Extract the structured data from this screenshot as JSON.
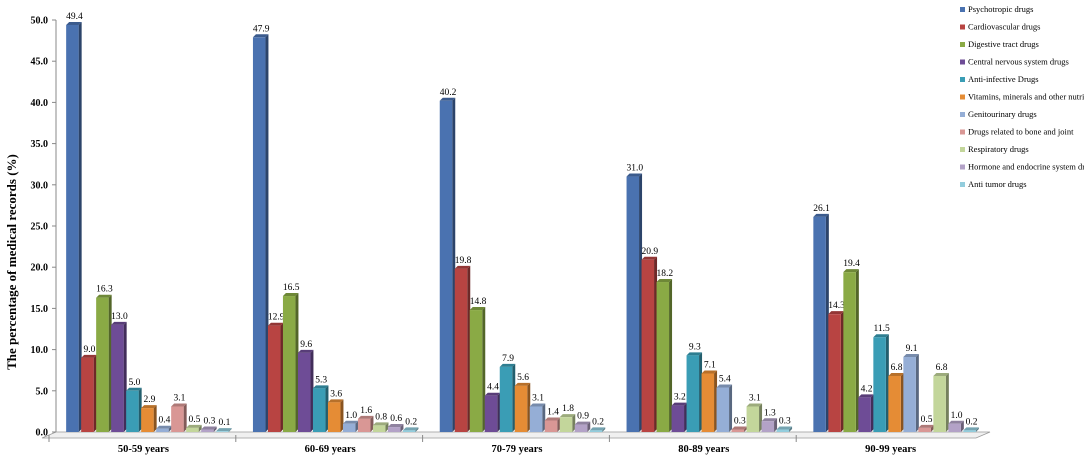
{
  "chart_data": {
    "type": "bar",
    "title": "",
    "xlabel": "",
    "ylabel": "The percentage of medical records (%)",
    "ylim": [
      0,
      50
    ],
    "yticks": [
      "0.0",
      "5.0",
      "10.0",
      "15.0",
      "20.0",
      "25.0",
      "30.0",
      "35.0",
      "40.0",
      "45.0",
      "50.0"
    ],
    "grid": false,
    "legend_position": "right",
    "categories": [
      "50-59 years",
      "60-69 years",
      "70-79 years",
      "80-89 years",
      "90-99 years"
    ],
    "series": [
      {
        "name": "Psychotropic drugs",
        "color": "#4a72b0",
        "values": [
          49.4,
          47.9,
          40.2,
          31.0,
          26.1
        ],
        "labels": [
          "49.4",
          "47.9",
          "40.2",
          "31.0",
          "26.1"
        ]
      },
      {
        "name": "Cardiovascular drugs",
        "color": "#b84442",
        "values": [
          9.0,
          12.9,
          19.8,
          20.9,
          14.3
        ],
        "labels": [
          "9.0",
          "12.9",
          "19.8",
          "20.9",
          "14.3"
        ]
      },
      {
        "name": "Digestive tract drugs",
        "color": "#8aaa45",
        "values": [
          16.3,
          16.5,
          14.8,
          18.2,
          19.4
        ],
        "labels": [
          "16.3",
          "16.5",
          "14.8",
          "18.2",
          "19.4"
        ]
      },
      {
        "name": "Central nervous system drugs",
        "color": "#6e4c96",
        "values": [
          13.0,
          9.6,
          4.4,
          3.2,
          4.2
        ],
        "labels": [
          "13.0",
          "9.6",
          "4.4",
          "3.2",
          "4.2"
        ]
      },
      {
        "name": "Anti-infective Drugs",
        "color": "#3a9db5",
        "values": [
          5.0,
          5.3,
          7.9,
          9.3,
          11.5
        ],
        "labels": [
          "5.0",
          "5.3",
          "7.9",
          "9.3",
          "11.5"
        ]
      },
      {
        "name": "Vitamins, minerals and other nutrients",
        "color": "#e58c35",
        "values": [
          2.9,
          3.6,
          5.6,
          7.1,
          6.8
        ],
        "labels": [
          "2.9",
          "3.6",
          "5.6",
          "7.1",
          "6.8"
        ]
      },
      {
        "name": "Genitourinary drugs",
        "color": "#95aed6",
        "values": [
          0.4,
          1.0,
          3.1,
          5.4,
          9.1
        ],
        "labels": [
          "0.4",
          "1.0",
          "3.1",
          "5.4",
          "9.1"
        ]
      },
      {
        "name": "Drugs related to bone and joint",
        "color": "#d99795",
        "values": [
          3.1,
          1.6,
          1.4,
          0.3,
          0.5
        ],
        "labels": [
          "3.1",
          "1.6",
          "1.4",
          "0.3",
          "0.5"
        ]
      },
      {
        "name": "Respiratory drugs",
        "color": "#c3d69b",
        "values": [
          0.5,
          0.8,
          1.8,
          3.1,
          6.8
        ],
        "labels": [
          "0.5",
          "0.8",
          "1.8",
          "3.1",
          "6.8"
        ]
      },
      {
        "name": "Hormone and endocrine system drugs",
        "color": "#b3a2c7",
        "values": [
          0.3,
          0.6,
          0.9,
          1.3,
          1.0
        ],
        "labels": [
          "0.3",
          "0.6",
          "0.9",
          "1.3",
          "1.0"
        ]
      },
      {
        "name": "Anti tumor drugs",
        "color": "#93cddd",
        "values": [
          0.1,
          0.2,
          0.2,
          0.3,
          0.2
        ],
        "labels": [
          "0.1",
          "0.2",
          "0.2",
          "0.3",
          "0.2"
        ]
      }
    ]
  }
}
